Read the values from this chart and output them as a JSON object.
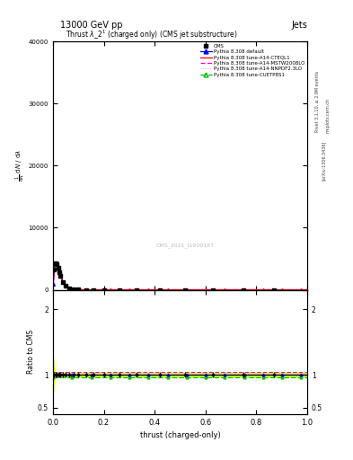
{
  "title": "13000 GeV pp",
  "title_right": "Jets",
  "plot_title": "Thrust $\\lambda$_2$^1$ (charged only) (CMS jet substructure)",
  "xlabel": "thrust (charged-only)",
  "ylabel_ratio": "Ratio to CMS",
  "watermark": "CMS_2021_I1920187",
  "rivet_text": "Rivet 3.1.10, ≥ 2.9M events",
  "arxiv_text": "[arXiv:1306.3436]",
  "mcplots_text": "mcplots.cern.ch",
  "xlim": [
    0.0,
    1.0
  ],
  "ylim_main": [
    0,
    40000
  ],
  "ylim_ratio": [
    0.4,
    2.3
  ],
  "colors": {
    "cms": "#000000",
    "default": "#0000ff",
    "cteq": "#ff0000",
    "mstw": "#ff00cc",
    "nnpdf": "#ff88ff",
    "cuetp": "#00bb00"
  },
  "legend": {
    "cms_label": "CMS",
    "default_label": "Pythia 8.308 default",
    "cteq_label": "Pythia 8.308 tune-A14-CTEQL1",
    "mstw_label": "Pythia 8.308 tune-A14-MSTW2008LO",
    "nnpdf_label": "Pythia 8.308 tune-A14-NNPDF2.3LO",
    "cuetp_label": "Pythia 8.308 tune-CUETP8S1"
  }
}
